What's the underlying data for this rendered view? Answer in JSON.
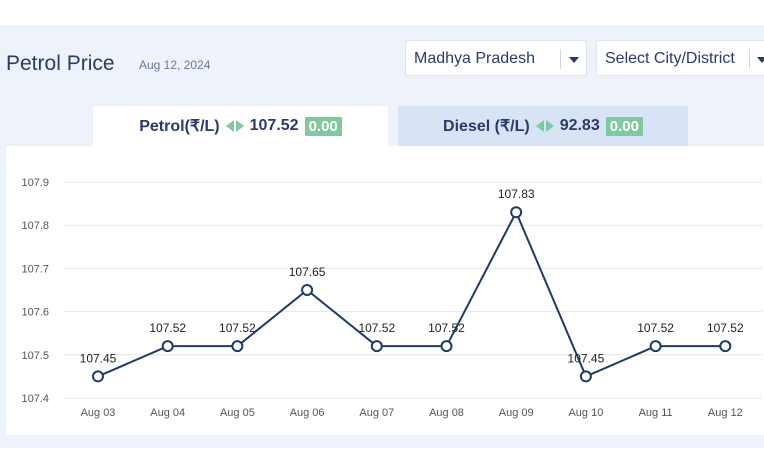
{
  "header": {
    "title": "Petrol Price",
    "date": "Aug 12, 2024"
  },
  "selectors": {
    "state": "Madhya Pradesh",
    "city": "Select City/District"
  },
  "tabs": {
    "petrol": {
      "label": "Petrol(₹/L)",
      "price": "107.52",
      "change": "0.00"
    },
    "diesel": {
      "label": "Diesel (₹/L)",
      "price": "92.83",
      "change": "0.00"
    }
  },
  "colors": {
    "line": "#1f3b63",
    "change_badge": "#7fc8a0",
    "grid": "#e6e6e6"
  },
  "chart_data": {
    "type": "line",
    "categories": [
      "Aug 03",
      "Aug 04",
      "Aug 05",
      "Aug 06",
      "Aug 07",
      "Aug 08",
      "Aug 09",
      "Aug 10",
      "Aug 11",
      "Aug 12"
    ],
    "series": [
      {
        "values": [
          107.45,
          107.52,
          107.52,
          107.65,
          107.52,
          107.52,
          107.83,
          107.45,
          107.52,
          107.52
        ]
      }
    ],
    "data_labels": [
      "107.45",
      "107.52",
      "107.52",
      "107.65",
      "107.52",
      "107.52",
      "107.83",
      "107.45",
      "107.52",
      "107.52"
    ],
    "y_ticks": [
      "107.4",
      "107.5",
      "107.6",
      "107.7",
      "107.8",
      "107.9"
    ],
    "ylim": [
      107.4,
      107.9
    ],
    "grid": true
  }
}
